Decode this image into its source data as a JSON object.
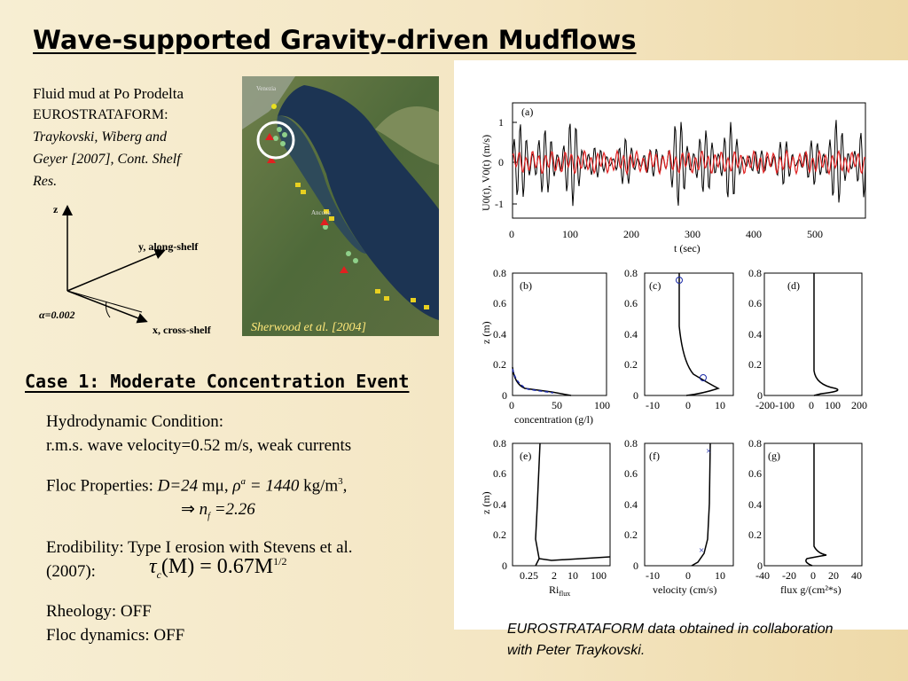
{
  "title": "Wave-supported Gravity-driven Mudflows",
  "intro": {
    "line1": "Fluid mud at Po Prodelta",
    "line2": "EUROSTRATAFORM:",
    "citation_line1": "Traykovski, Wiberg and",
    "citation_line2": "Geyer [2007], Cont. Shelf",
    "citation_line3": "Res."
  },
  "axes_sketch": {
    "z_label": "z",
    "y_label": "y, along-shelf",
    "x_label": "x, cross-shelf",
    "alpha_label": "α=0.002"
  },
  "map": {
    "city_venice": "Venezia",
    "city_ancona": "Ancona",
    "credit": "Sherwood et al. [2004]"
  },
  "case_heading": "Case 1: Moderate Concentration Event",
  "hydro": {
    "label": "Hydrodynamic Condition:",
    "value": "r.m.s. wave velocity=0.52 m/s, weak currents"
  },
  "floc": {
    "label": "Floc Properties: ",
    "d_value": "D=24",
    "d_unit": " mμ, ",
    "rho_symbol": "ρ",
    "rho_sup": "a",
    "rho_value": " = 1440",
    "rho_unit": " kg/m",
    "rho_unit_sup": "3",
    "comma": ",",
    "implies": "⇒ ",
    "nf": "n",
    "nf_sub": "f",
    "nf_value": " =2.26"
  },
  "erod": {
    "line1": "Erodibility: Type I erosion with Stevens et al.",
    "line2": "(2007):",
    "formula_tau": "τ",
    "formula_sub": "c",
    "formula_mid": "(M) = 0.67M",
    "formula_exp": "1/2"
  },
  "rheology": "Rheology: OFF",
  "floc_dyn": "Floc dynamics: OFF",
  "caption_line1": "EUROSTRATAFORM data obtained in collaboration",
  "caption_line2": "with Peter Traykovski.",
  "figure": {
    "panel_a": {
      "label": "(a)",
      "ylabel": "U0(t), V0(t) (m/s)",
      "xlabel": "t (sec)",
      "xticks": [
        "0",
        "100",
        "200",
        "300",
        "400",
        "500"
      ],
      "yticks": [
        "1",
        "0",
        "-1"
      ]
    },
    "panels": [
      {
        "label": "(b)",
        "xticks": [
          "0",
          "50",
          "100"
        ],
        "xlabel": "concentration (g/l)"
      },
      {
        "label": "(c)",
        "xticks": [
          "-10",
          "0",
          "10"
        ],
        "xlabel": ""
      },
      {
        "label": "(d)",
        "xticks": [
          "-200-100",
          "0",
          "100",
          "200"
        ],
        "xlabel": ""
      },
      {
        "label": "(e)",
        "xticks": [
          "0.25",
          "2",
          "10",
          "100"
        ],
        "xlabel": "Ri",
        "xlabel_sub": "flux"
      },
      {
        "label": "(f)",
        "xticks": [
          "-10",
          "0",
          "10"
        ],
        "xlabel": "velocity (cm/s)"
      },
      {
        "label": "(g)",
        "xticks": [
          "-40",
          "-20",
          "0",
          "20",
          "40"
        ],
        "xlabel": "flux g/(cm²*s)"
      }
    ],
    "z_label": "z (m)",
    "yticks_profile": [
      "0.8",
      "0.6",
      "0.4",
      "0.2",
      "0"
    ],
    "colors": {
      "series_black": "#000000",
      "series_red": "#e02020",
      "marker_blue": "#1a2aa8"
    }
  }
}
